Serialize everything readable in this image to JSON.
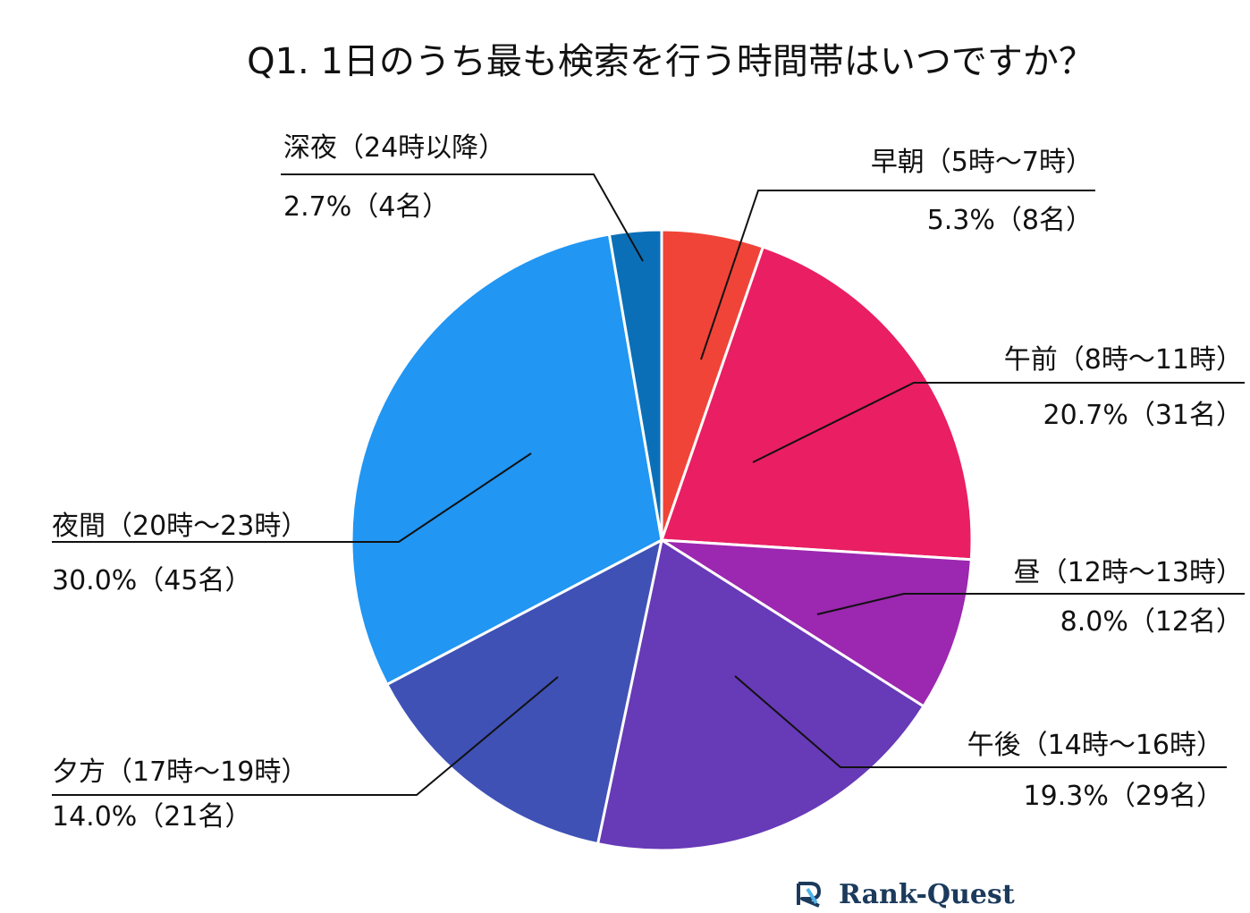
{
  "chart_data": {
    "type": "pie",
    "title": "Q1. 1日のうち最も検索を行う時間帯はいつですか？",
    "unit": "名",
    "slices": [
      {
        "category": "早朝（5時～7時）",
        "percent": 5.3,
        "count": 8,
        "color": "#f04438",
        "value_label": "5.3%（8名）"
      },
      {
        "category": "午前（8時～11時）",
        "percent": 20.7,
        "count": 31,
        "color": "#e91e63",
        "value_label": "20.7%（31名）"
      },
      {
        "category": "昼（12時～13時）",
        "percent": 8.0,
        "count": 12,
        "color": "#9c27b0",
        "value_label": "8.0%（12名）"
      },
      {
        "category": "午後（14時～16時）",
        "percent": 19.3,
        "count": 29,
        "color": "#673ab7",
        "value_label": "19.3%（29名）"
      },
      {
        "category": "夕方（17時～19時）",
        "percent": 14.0,
        "count": 21,
        "color": "#3f51b5",
        "value_label": "14.0%（21名）"
      },
      {
        "category": "夜間（20時～23時）",
        "percent": 30.0,
        "count": 45,
        "color": "#2196f3",
        "value_label": "30.0%（45名）"
      },
      {
        "category": "深夜（24時以降）",
        "percent": 2.7,
        "count": 4,
        "color": "#0b6fb8",
        "value_label": "2.7%（4名）"
      }
    ]
  },
  "logo": {
    "text": "Rank-Quest",
    "icon": "rank-quest-logo-icon",
    "color": "#1b3a5c"
  }
}
